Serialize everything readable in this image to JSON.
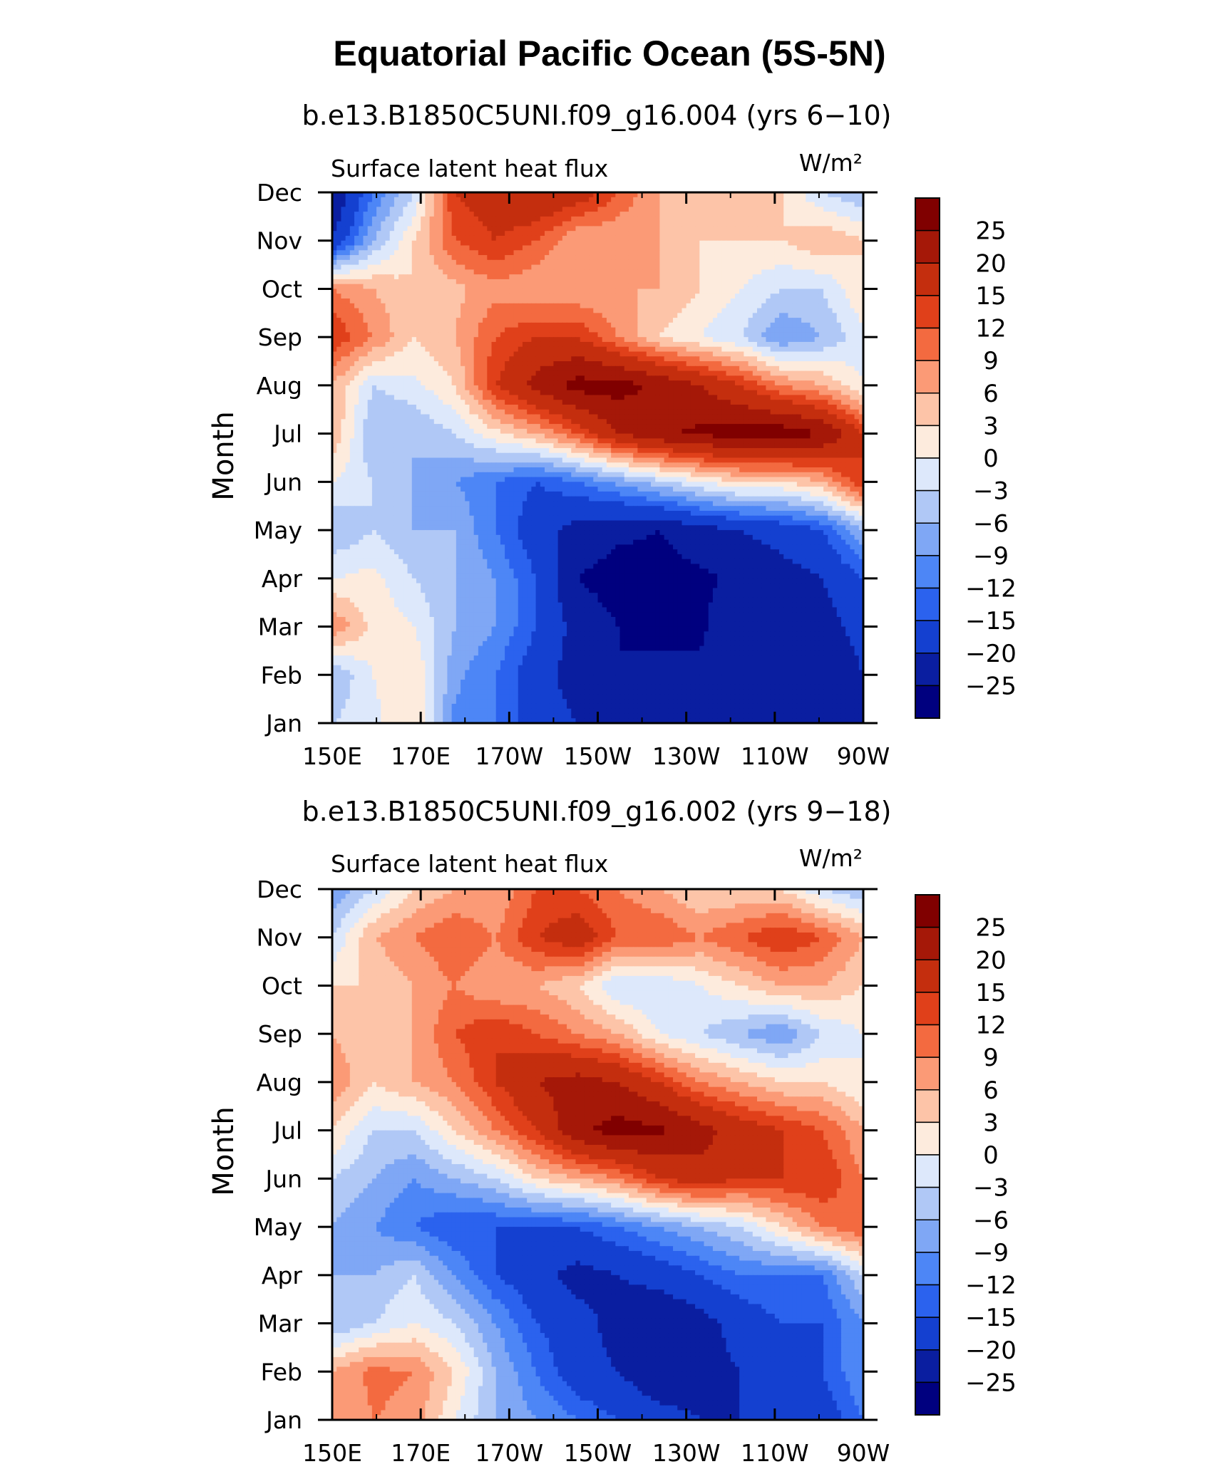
{
  "figure": {
    "title": "Equatorial Pacific Ocean (5S-5N)"
  },
  "colors": [
    "#00007f",
    "#0a1ea0",
    "#1440d0",
    "#2b62ee",
    "#4d86f6",
    "#7fa7f5",
    "#b0c8f6",
    "#dde8fb",
    "#fdebdd",
    "#fdc4a8",
    "#fb9a76",
    "#f36a40",
    "#e0401a",
    "#c42e0e",
    "#a51808",
    "#800000"
  ],
  "chart_data": [
    {
      "type": "heatmap",
      "title": "b.e13.B1850C5UNI.f09_g16.004 (yrs 6−10)",
      "left_label": "Surface latent heat flux",
      "right_label": "W/m²",
      "ylabel": "Month",
      "xlabel": "",
      "x": [
        "150E",
        "170E",
        "170W",
        "150W",
        "130W",
        "110W",
        "90W"
      ],
      "y": [
        "Jan",
        "Feb",
        "Mar",
        "Apr",
        "May",
        "Jun",
        "Jul",
        "Aug",
        "Sep",
        "Oct",
        "Nov",
        "Dec"
      ],
      "grid": false,
      "colorbar_labels": [
        "25",
        "20",
        "15",
        "12",
        "9",
        "6",
        "3",
        "0",
        "−3",
        "−6",
        "−9",
        "−12",
        "−15",
        "−20",
        "−25"
      ],
      "levels": [
        -25,
        -20,
        -15,
        -12,
        -9,
        -6,
        -3,
        0,
        3,
        6,
        9,
        12,
        15,
        20,
        25
      ],
      "values": [
        [
          -3,
          -1,
          3,
          -10,
          -12,
          -18,
          -20,
          -22,
          -22,
          -22,
          -22,
          -24,
          -25,
          -22
        ],
        [
          -6,
          0,
          3,
          -8,
          -12,
          -18,
          -22,
          -25,
          -24,
          -24,
          -22,
          -24,
          -25,
          -20
        ],
        [
          9,
          2,
          0,
          -6,
          -9,
          -15,
          -22,
          -25,
          -26,
          -26,
          -20,
          -23,
          -22,
          -18
        ],
        [
          0,
          1,
          -3,
          -6,
          -9,
          -15,
          -25,
          -27,
          -27,
          -26,
          -24,
          -22,
          -20,
          -15
        ],
        [
          -6,
          -3,
          -6,
          -6,
          -12,
          -18,
          -22,
          -24,
          -25,
          -22,
          -20,
          -18,
          -15,
          -6
        ],
        [
          0,
          -3,
          -6,
          -9,
          -12,
          -15,
          -12,
          -8,
          -4,
          0,
          3,
          3,
          6,
          15
        ],
        [
          6,
          -6,
          -6,
          -3,
          2,
          6,
          12,
          20,
          24,
          26,
          27,
          28,
          25,
          15
        ],
        [
          6,
          -3,
          -1,
          3,
          15,
          22,
          27,
          27,
          24,
          20,
          15,
          9,
          6,
          0
        ],
        [
          15,
          9,
          3,
          6,
          12,
          15,
          15,
          9,
          3,
          0,
          -3,
          -9,
          -6,
          -1
        ],
        [
          9,
          6,
          3,
          5,
          8,
          6,
          6,
          6,
          6,
          3,
          0,
          -3,
          -3,
          3
        ],
        [
          -20,
          -6,
          3,
          12,
          15,
          12,
          6,
          6,
          6,
          3,
          3,
          3,
          6,
          3
        ],
        [
          -25,
          -12,
          -3,
          15,
          18,
          20,
          18,
          12,
          6,
          3,
          3,
          3,
          -3,
          -6
        ]
      ]
    },
    {
      "type": "heatmap",
      "title": "b.e13.B1850C5UNI.f09_g16.002 (yrs 9−18)",
      "left_label": "Surface latent heat flux",
      "right_label": "W/m²",
      "ylabel": "Month",
      "xlabel": "",
      "x": [
        "150E",
        "170E",
        "170W",
        "150W",
        "130W",
        "110W",
        "90W"
      ],
      "y": [
        "Jan",
        "Feb",
        "Mar",
        "Apr",
        "May",
        "Jun",
        "Jul",
        "Aug",
        "Sep",
        "Oct",
        "Nov",
        "Dec"
      ],
      "grid": false,
      "colorbar_labels": [
        "25",
        "20",
        "15",
        "12",
        "9",
        "6",
        "3",
        "0",
        "−3",
        "−6",
        "−9",
        "−12",
        "−15",
        "−20",
        "−25"
      ],
      "levels": [
        -25,
        -20,
        -15,
        -12,
        -9,
        -6,
        -3,
        0,
        3,
        6,
        9,
        12,
        15,
        20,
        25
      ],
      "values": [
        [
          6,
          9,
          8,
          0,
          -6,
          -9,
          -12,
          -15,
          -18,
          -20,
          -20,
          -18,
          -18,
          -12
        ],
        [
          6,
          10,
          9,
          3,
          -6,
          -12,
          -18,
          -20,
          -24,
          -22,
          -20,
          -18,
          -15,
          -9
        ],
        [
          -6,
          -3,
          0,
          -3,
          -9,
          -15,
          -18,
          -22,
          -25,
          -22,
          -18,
          -15,
          -15,
          -9
        ],
        [
          -6,
          -6,
          -3,
          -9,
          -15,
          -18,
          -22,
          -20,
          -18,
          -15,
          -12,
          -12,
          -12,
          -3
        ],
        [
          -6,
          -9,
          -12,
          -15,
          -15,
          -15,
          -15,
          -12,
          -9,
          -6,
          -3,
          3,
          9,
          12
        ],
        [
          -3,
          -6,
          -9,
          -6,
          -3,
          3,
          6,
          9,
          15,
          18,
          15,
          15,
          15,
          9
        ],
        [
          3,
          -3,
          -3,
          3,
          9,
          15,
          24,
          27,
          26,
          22,
          18,
          15,
          12,
          6
        ],
        [
          9,
          3,
          6,
          9,
          15,
          20,
          22,
          20,
          15,
          9,
          6,
          3,
          3,
          0
        ],
        [
          6,
          3,
          6,
          12,
          15,
          12,
          9,
          6,
          0,
          -3,
          -6,
          -9,
          -3,
          0
        ],
        [
          3,
          3,
          6,
          9,
          6,
          6,
          3,
          -3,
          -3,
          0,
          3,
          6,
          6,
          3
        ],
        [
          -3,
          6,
          9,
          12,
          9,
          15,
          18,
          12,
          12,
          9,
          12,
          15,
          12,
          6
        ],
        [
          -9,
          -3,
          3,
          6,
          6,
          12,
          12,
          9,
          6,
          3,
          3,
          3,
          -3,
          -6
        ]
      ]
    }
  ]
}
